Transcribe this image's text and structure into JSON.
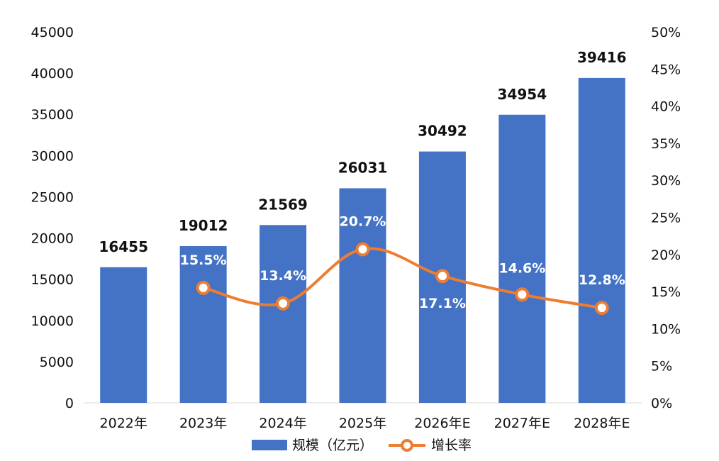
{
  "chart_data": {
    "type": "bar",
    "title": "",
    "categories": [
      "2022年",
      "2023年",
      "2024年",
      "2025年",
      "2026年E",
      "2027年E",
      "2028年E"
    ],
    "series": [
      {
        "name": "规模（亿元）",
        "type": "bar",
        "axis": "left",
        "color": "#4472c4",
        "values": [
          16455,
          19012,
          21569,
          26031,
          30492,
          34954,
          39416
        ],
        "labels": [
          "16455",
          "19012",
          "21569",
          "26031",
          "30492",
          "34954",
          "39416"
        ]
      },
      {
        "name": "增长率",
        "type": "line",
        "axis": "right",
        "color": "#ed7d31",
        "values": [
          null,
          15.5,
          13.4,
          20.7,
          17.1,
          14.6,
          12.8
        ],
        "labels": [
          "",
          "15.5%",
          "13.4%",
          "20.7%",
          "17.1%",
          "14.6%",
          "12.8%"
        ]
      }
    ],
    "y_left": {
      "min": 0,
      "max": 45000,
      "step": 5000,
      "ticks": [
        "0",
        "5000",
        "10000",
        "15000",
        "20000",
        "25000",
        "30000",
        "35000",
        "40000",
        "45000"
      ]
    },
    "y_right": {
      "min": 0,
      "max": 50,
      "step": 5,
      "ticks": [
        "0%",
        "5%",
        "10%",
        "15%",
        "20%",
        "25%",
        "30%",
        "35%",
        "40%",
        "45%",
        "50%"
      ]
    },
    "grid": false,
    "legend_position": "bottom"
  }
}
